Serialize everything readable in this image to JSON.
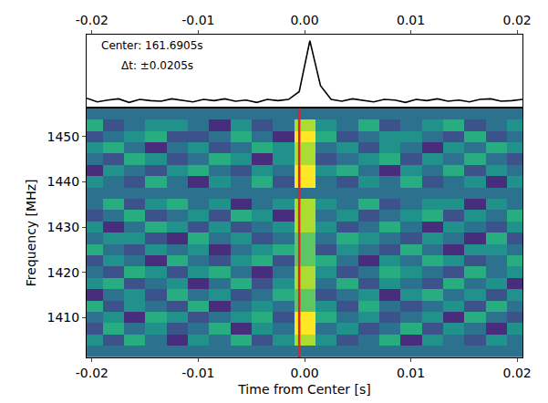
{
  "chart_data": [
    {
      "type": "line",
      "color": "#000000",
      "annotations": [
        "Center: 161.6905s",
        "Δt: ±0.0205s"
      ],
      "x": [
        -0.0205,
        -0.0195,
        -0.0185,
        -0.0175,
        -0.0165,
        -0.0155,
        -0.0145,
        -0.0135,
        -0.0125,
        -0.0115,
        -0.0105,
        -0.0095,
        -0.0085,
        -0.0075,
        -0.0065,
        -0.0055,
        -0.0045,
        -0.0035,
        -0.0025,
        -0.0015,
        -0.0005,
        0.0005,
        0.0015,
        0.0025,
        0.0035,
        0.0045,
        0.0055,
        0.0065,
        0.0075,
        0.0085,
        0.0095,
        0.0105,
        0.0115,
        0.0125,
        0.0135,
        0.0145,
        0.0155,
        0.0165,
        0.0175,
        0.0185,
        0.0195,
        0.0205
      ],
      "values": [
        0.4,
        -0.2,
        0.1,
        0.3,
        -0.3,
        0.2,
        0.0,
        -0.1,
        0.3,
        0.1,
        -0.2,
        0.2,
        0.0,
        0.3,
        -0.1,
        0.1,
        -0.3,
        0.2,
        0.0,
        0.2,
        1.5,
        10.0,
        2.5,
        0.2,
        -0.1,
        0.3,
        0.0,
        -0.2,
        0.2,
        0.1,
        -0.3,
        0.2,
        0.0,
        0.3,
        -0.1,
        0.1,
        -0.2,
        0.2,
        0.3,
        -0.1,
        0.0,
        0.2
      ],
      "xlim": [
        -0.0205,
        0.0205
      ],
      "xticks": [
        -0.02,
        -0.01,
        {
          "value": 0,
          "label": "0.00"
        },
        0.01,
        0.02
      ],
      "ylim": [
        -1,
        11
      ],
      "tick_labels": "x"
    },
    {
      "type": "heatmap",
      "color": "viridis",
      "xlabel": "Time from Center [s]",
      "ylabel": "Frequency [MHz]",
      "x": [
        -0.02,
        -0.018,
        -0.016,
        -0.014,
        -0.012,
        -0.01,
        -0.008,
        -0.006,
        -0.004,
        -0.002,
        0.0,
        0.002,
        0.004,
        0.006,
        0.008,
        0.01,
        0.012,
        0.014,
        0.016,
        0.018,
        0.02
      ],
      "y": [
        1402.5,
        1405,
        1407.5,
        1410,
        1412.5,
        1415,
        1417.5,
        1420,
        1422.5,
        1425,
        1427.5,
        1430,
        1432.5,
        1435,
        1437.5,
        1440,
        1442.5,
        1445,
        1447.5,
        1450,
        1452.5,
        1455
      ],
      "z": [
        [
          0,
          0,
          0,
          0,
          0,
          0,
          0,
          0,
          0,
          0,
          0,
          0,
          0,
          0,
          0,
          0,
          0,
          0,
          0,
          0,
          0
        ],
        [
          1,
          -1,
          2,
          0,
          -2,
          1,
          0,
          2,
          -1,
          1,
          4,
          1,
          -1,
          0,
          2,
          -2,
          1,
          0,
          -1,
          1,
          0
        ],
        [
          -1,
          2,
          0,
          1,
          -1,
          0,
          2,
          -2,
          1,
          0,
          5,
          0,
          1,
          -1,
          0,
          2,
          -1,
          1,
          0,
          -2,
          1
        ],
        [
          0,
          1,
          -2,
          2,
          1,
          -1,
          0,
          1,
          2,
          -1,
          5,
          2,
          0,
          1,
          -1,
          0,
          1,
          -2,
          2,
          0,
          -1
        ],
        [
          2,
          -1,
          1,
          0,
          -1,
          2,
          -2,
          0,
          1,
          0,
          3,
          1,
          -1,
          2,
          0,
          -1,
          0,
          1,
          -1,
          2,
          0
        ],
        [
          -2,
          0,
          1,
          -1,
          2,
          0,
          1,
          -1,
          0,
          2,
          3,
          -1,
          0,
          1,
          -2,
          1,
          2,
          0,
          1,
          -1,
          1
        ],
        [
          1,
          2,
          -1,
          0,
          1,
          -2,
          0,
          2,
          -1,
          1,
          4,
          0,
          2,
          -1,
          1,
          0,
          -1,
          2,
          0,
          1,
          -2
        ],
        [
          0,
          -1,
          2,
          1,
          -1,
          1,
          2,
          0,
          -2,
          0,
          4,
          1,
          -1,
          0,
          2,
          1,
          0,
          -1,
          2,
          0,
          1
        ],
        [
          -1,
          1,
          0,
          -2,
          2,
          0,
          -1,
          1,
          2,
          -1,
          3,
          2,
          0,
          -2,
          1,
          0,
          2,
          1,
          -1,
          0,
          2
        ],
        [
          2,
          0,
          -1,
          1,
          0,
          1,
          -2,
          0,
          1,
          2,
          3,
          -1,
          1,
          0,
          -1,
          2,
          0,
          -2,
          1,
          1,
          0
        ],
        [
          0,
          1,
          1,
          -1,
          -2,
          2,
          0,
          1,
          -1,
          0,
          3,
          0,
          2,
          1,
          0,
          -1,
          1,
          0,
          -2,
          2,
          -1
        ],
        [
          1,
          -2,
          0,
          2,
          1,
          -1,
          1,
          -1,
          0,
          1,
          4,
          1,
          -1,
          0,
          2,
          0,
          -2,
          1,
          0,
          -1,
          1
        ],
        [
          -1,
          0,
          2,
          -1,
          0,
          1,
          -1,
          2,
          1,
          -2,
          4,
          0,
          1,
          -1,
          0,
          1,
          2,
          -1,
          1,
          0,
          2
        ],
        [
          0,
          2,
          -1,
          1,
          2,
          0,
          1,
          -2,
          0,
          1,
          4,
          1,
          0,
          2,
          -1,
          0,
          1,
          1,
          -2,
          1,
          0
        ],
        [
          0,
          0,
          0,
          0,
          0,
          0,
          0,
          0,
          0,
          0,
          0,
          0,
          0,
          0,
          0,
          0,
          0,
          0,
          0,
          0,
          0
        ],
        [
          1,
          0,
          -1,
          2,
          0,
          -2,
          1,
          0,
          2,
          -1,
          5,
          0,
          -1,
          1,
          0,
          2,
          -1,
          0,
          1,
          -2,
          1
        ],
        [
          -2,
          1,
          0,
          -1,
          1,
          2,
          0,
          -1,
          1,
          0,
          5,
          1,
          2,
          0,
          -2,
          1,
          0,
          2,
          -1,
          1,
          0
        ],
        [
          0,
          -1,
          2,
          1,
          -1,
          0,
          2,
          1,
          -2,
          1,
          4,
          -1,
          0,
          1,
          2,
          -1,
          1,
          0,
          2,
          0,
          -1
        ],
        [
          1,
          2,
          0,
          -2,
          0,
          1,
          -1,
          0,
          2,
          1,
          4,
          0,
          1,
          -1,
          1,
          0,
          -2,
          1,
          0,
          2,
          1
        ],
        [
          -1,
          0,
          1,
          2,
          -1,
          -1,
          0,
          2,
          0,
          -2,
          5,
          2,
          -1,
          0,
          1,
          1,
          0,
          -1,
          2,
          -1,
          0
        ],
        [
          2,
          -1,
          0,
          1,
          1,
          0,
          -2,
          1,
          -1,
          0,
          4,
          1,
          0,
          2,
          -1,
          0,
          1,
          2,
          -1,
          0,
          1
        ],
        [
          0,
          0,
          0,
          0,
          0,
          0,
          0,
          0,
          0,
          0,
          0,
          0,
          0,
          0,
          0,
          0,
          0,
          0,
          0,
          0,
          0
        ]
      ],
      "zlim": [
        -3,
        5
      ],
      "xlim": [
        -0.0205,
        0.0205
      ],
      "xticks": [
        -0.02,
        -0.01,
        {
          "value": 0,
          "label": "0.00"
        },
        0.01,
        0.02
      ],
      "ylim": [
        1401.25,
        1456.25
      ],
      "yticks": [
        1410,
        1420,
        1430,
        1440,
        1450
      ],
      "shapes": [
        {
          "x": -0.0005,
          "color": "#e8202a"
        }
      ]
    }
  ]
}
